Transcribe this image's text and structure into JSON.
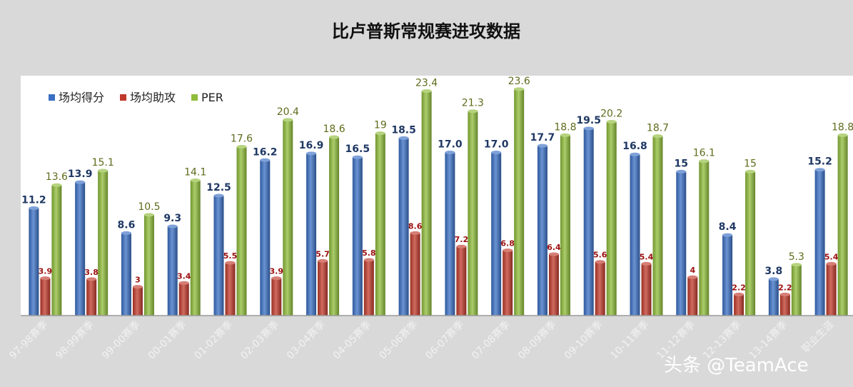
{
  "chart_data": {
    "type": "bar",
    "title": "比卢普斯常规赛进攻数据",
    "categories": [
      "97-98赛季",
      "98-99赛季",
      "99-00赛季",
      "00-01赛季",
      "01-02赛季",
      "02-03赛季",
      "03-04赛季",
      "04-05赛季",
      "05-06赛季",
      "06-07赛季",
      "07-08赛季",
      "08-09赛季",
      "09-10赛季",
      "10-11赛季",
      "11-12赛季",
      "12-13赛季",
      "13-14赛季",
      "职业生涯"
    ],
    "series": [
      {
        "name": "场均得分",
        "color": "#3a6fc4",
        "labels": [
          "11.2",
          "13.9",
          "8.6",
          "9.3",
          "12.5",
          "16.2",
          "16.9",
          "16.5",
          "18.5",
          "17.0",
          "17.0",
          "17.7",
          "19.5",
          "16.8",
          "15",
          "8.4",
          "3.8",
          "15.2"
        ],
        "values": [
          11.2,
          13.9,
          8.6,
          9.3,
          12.5,
          16.2,
          16.9,
          16.5,
          18.5,
          17.0,
          17.0,
          17.7,
          19.5,
          16.8,
          15,
          8.4,
          3.8,
          15.2
        ]
      },
      {
        "name": "场均助攻",
        "color": "#c0392b",
        "labels": [
          "3.9",
          "3.8",
          "3",
          "3.4",
          "5.5",
          "3.9",
          "5.7",
          "5.8",
          "8.6",
          "7.2",
          "6.8",
          "6.4",
          "5.6",
          "5.4",
          "4",
          "2.2",
          "2.2",
          "5.4"
        ],
        "values": [
          3.9,
          3.8,
          3,
          3.4,
          5.5,
          3.9,
          5.7,
          5.8,
          8.6,
          7.2,
          6.8,
          6.4,
          5.6,
          5.4,
          4,
          2.2,
          2.2,
          5.4
        ]
      },
      {
        "name": "PER",
        "color": "#8fbc3a",
        "labels": [
          "13.6",
          "15.1",
          "10.5",
          "14.1",
          "17.6",
          "20.4",
          "18.6",
          "19",
          "23.4",
          "21.3",
          "23.6",
          "18.8",
          "20.2",
          "18.7",
          "16.1",
          "15",
          "5.3",
          "18.8"
        ],
        "values": [
          13.6,
          15.1,
          10.5,
          14.1,
          17.6,
          20.4,
          18.6,
          19,
          23.4,
          21.3,
          23.6,
          18.8,
          20.2,
          18.7,
          16.1,
          15,
          5.3,
          18.8
        ]
      }
    ],
    "ylim": [
      0,
      25
    ],
    "grid": false,
    "legend": "top-left"
  },
  "watermark": "头条 @TeamAce"
}
